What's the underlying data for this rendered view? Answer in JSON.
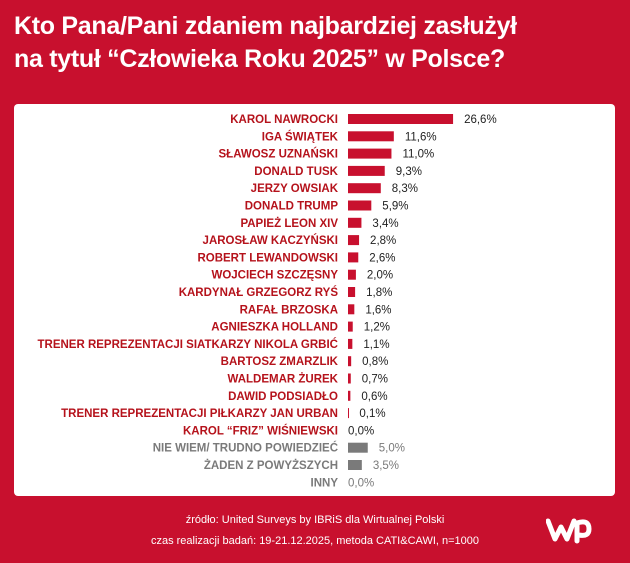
{
  "title_line1": "Kto Pana/Pani zdaniem najbardziej zasłużył",
  "title_line2": "na tytuł “Człowieka Roku 2025” w Polsce?",
  "footer_source": "źródło: United Surveys by IBRiS dla Wirtualnej Polski",
  "footer_method": "czas realizacji badań: 19-21.12.2025, metoda CATI&CAWI, n=1000",
  "colors": {
    "background": "#c8102e",
    "bar_main": "#c8102e",
    "bar_other": "#7a7a7a",
    "label_main": "#b5121b",
    "label_other": "#7a7a7a"
  },
  "chart_data": {
    "type": "bar",
    "orientation": "horizontal",
    "unit": "%",
    "categories": [
      "KAROL NAWROCKI",
      "IGA ŚWIĄTEK",
      "SŁAWOSZ UZNAŃSKI",
      "DONALD TUSK",
      "JERZY OWSIAK",
      "DONALD TRUMP",
      "PAPIEŻ LEON XIV",
      "JAROSŁAW KACZYŃSKI",
      "ROBERT LEWANDOWSKI",
      "WOJCIECH SZCZĘSNY",
      "KARDYNAŁ GRZEGORZ RYŚ",
      "RAFAŁ BRZOSKA",
      "AGNIESZKA HOLLAND",
      "TRENER REPREZENTACJI SIATKARZY NIKOLA GRBIĆ",
      "BARTOSZ ZMARZLIK",
      "WALDEMAR ŻUREK",
      "DAWID PODSIADŁO",
      "TRENER REPREZENTACJI PIŁKARZY JAN URBAN",
      "KAROL “FRIZ” WIŚNIEWSKI",
      "NIE WIEM/ TRUDNO POWIEDZIEĆ",
      "ŻADEN Z POWYŻSZYCH",
      "INNY"
    ],
    "values": [
      26.6,
      11.6,
      11.0,
      9.3,
      8.3,
      5.9,
      3.4,
      2.8,
      2.6,
      2.0,
      1.8,
      1.6,
      1.2,
      1.1,
      0.8,
      0.7,
      0.6,
      0.1,
      0.0,
      5.0,
      3.5,
      0.0
    ],
    "value_labels": [
      "26,6%",
      "11,6%",
      "11,0%",
      "9,3%",
      "8,3%",
      "5,9%",
      "3,4%",
      "2,8%",
      "2,6%",
      "2,0%",
      "1,8%",
      "1,6%",
      "1,2%",
      "1,1%",
      "0,8%",
      "0,7%",
      "0,6%",
      "0,1%",
      "0,0%",
      "5,0%",
      "3,5%",
      "0,0%"
    ],
    "groups": [
      "main",
      "main",
      "main",
      "main",
      "main",
      "main",
      "main",
      "main",
      "main",
      "main",
      "main",
      "main",
      "main",
      "main",
      "main",
      "main",
      "main",
      "main",
      "main",
      "other",
      "other",
      "other"
    ],
    "grid": false,
    "legend": "none"
  }
}
